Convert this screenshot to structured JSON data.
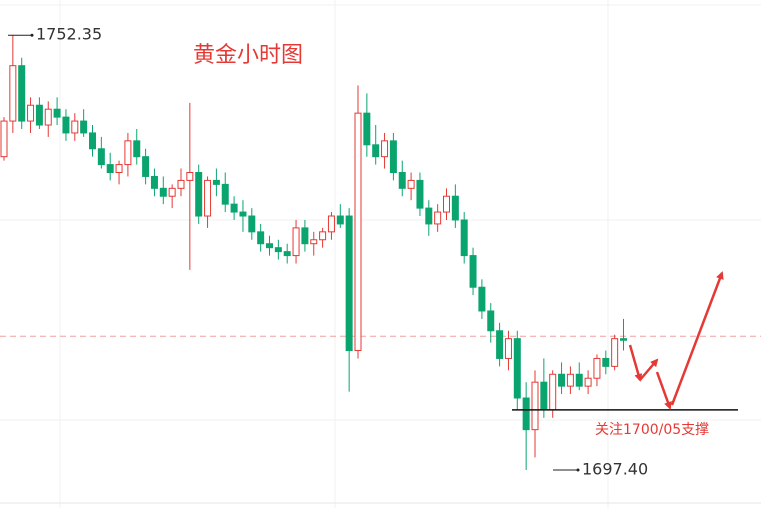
{
  "chart_data": {
    "type": "candlestick",
    "title": "黄金小时图",
    "ylim": [
      1692.6,
      1756.8
    ],
    "up_color": "#e53935",
    "down_color": "#0aa56f",
    "open": [
      1737.0,
      1741.5,
      1748.5,
      1741.5,
      1743.5,
      1741.0,
      1743.0,
      1742.0,
      1740.0,
      1741.5,
      1740.0,
      1738.0,
      1736.0,
      1735.0,
      1736.0,
      1739.0,
      1737.0,
      1734.5,
      1733.0,
      1732.0,
      1733.0,
      1734.0,
      1735.0,
      1729.5,
      1734.0,
      1733.5,
      1731.0,
      1730.0,
      1729.5,
      1727.5,
      1726.0,
      1725.5,
      1725.0,
      1724.5,
      1728.0,
      1726.0,
      1726.5,
      1727.5,
      1729.5,
      1729.5,
      1712.5,
      1742.5,
      1738.5,
      1737.0,
      1739.0,
      1735.0,
      1733.0,
      1734.0,
      1730.5,
      1728.5,
      1730.0,
      1732.0,
      1729.0,
      1724.5,
      1720.5,
      1717.5,
      1715.0,
      1711.5,
      1714.0,
      1706.5,
      1702.5,
      1708.5,
      1705.0,
      1709.5,
      1708.0,
      1709.5,
      1708.0,
      1709.0,
      1711.5,
      1710.5,
      1714.0
    ],
    "high": [
      1742.0,
      1752.35,
      1749.5,
      1744.5,
      1744.5,
      1744.0,
      1744.5,
      1743.0,
      1742.5,
      1743.0,
      1741.0,
      1739.5,
      1737.5,
      1736.5,
      1740.0,
      1740.5,
      1738.0,
      1735.5,
      1734.5,
      1733.5,
      1735.5,
      1743.8,
      1736.0,
      1734.5,
      1735.5,
      1735.0,
      1732.0,
      1731.5,
      1730.5,
      1728.5,
      1727.0,
      1726.5,
      1726.0,
      1729.0,
      1729.0,
      1727.5,
      1728.0,
      1730.0,
      1731.0,
      1730.5,
      1746.0,
      1745.0,
      1741.0,
      1740.0,
      1740.0,
      1736.5,
      1735.0,
      1735.0,
      1731.5,
      1731.0,
      1733.0,
      1733.5,
      1730.0,
      1725.5,
      1721.5,
      1718.5,
      1716.0,
      1715.0,
      1715.0,
      1708.5,
      1710.0,
      1711.5,
      1710.0,
      1711.0,
      1710.5,
      1711.0,
      1710.0,
      1712.0,
      1712.5,
      1714.5,
      1716.5
    ],
    "low": [
      1736.5,
      1740.0,
      1740.5,
      1740.0,
      1740.5,
      1739.5,
      1741.0,
      1739.0,
      1739.0,
      1739.5,
      1737.0,
      1735.5,
      1734.0,
      1733.5,
      1734.5,
      1736.0,
      1733.5,
      1732.0,
      1731.0,
      1730.5,
      1732.0,
      1722.7,
      1728.5,
      1728.0,
      1732.0,
      1730.0,
      1729.0,
      1727.5,
      1726.5,
      1725.0,
      1724.5,
      1724.0,
      1723.5,
      1723.5,
      1725.0,
      1724.5,
      1725.5,
      1726.5,
      1728.0,
      1707.3,
      1711.5,
      1737.0,
      1736.0,
      1735.5,
      1734.0,
      1732.0,
      1731.5,
      1729.5,
      1727.0,
      1727.5,
      1729.0,
      1728.0,
      1723.5,
      1719.5,
      1716.5,
      1713.5,
      1710.5,
      1710.0,
      1705.0,
      1697.4,
      1699.0,
      1704.0,
      1704.0,
      1707.0,
      1707.0,
      1707.5,
      1707.0,
      1708.0,
      1709.5,
      1710.0,
      1712.5
    ],
    "close": [
      1741.5,
      1748.5,
      1741.5,
      1743.5,
      1741.0,
      1743.0,
      1742.0,
      1740.0,
      1741.5,
      1740.0,
      1738.0,
      1736.0,
      1735.0,
      1736.0,
      1739.0,
      1737.0,
      1734.5,
      1733.0,
      1732.0,
      1733.0,
      1734.0,
      1735.0,
      1729.5,
      1734.0,
      1733.5,
      1731.0,
      1730.0,
      1729.5,
      1727.5,
      1726.0,
      1725.5,
      1725.0,
      1724.5,
      1728.0,
      1726.0,
      1726.5,
      1727.5,
      1729.5,
      1728.5,
      1712.5,
      1742.5,
      1738.5,
      1737.0,
      1739.0,
      1735.0,
      1733.0,
      1734.0,
      1730.5,
      1728.5,
      1730.0,
      1732.0,
      1729.0,
      1724.5,
      1720.5,
      1717.5,
      1715.0,
      1711.5,
      1714.0,
      1706.5,
      1702.5,
      1708.5,
      1705.0,
      1709.5,
      1708.0,
      1709.5,
      1708.0,
      1709.0,
      1711.5,
      1710.5,
      1714.0,
      1713.8
    ],
    "high_label": 1752.35,
    "low_label": {
      "value": 1697.4,
      "label": "1697.40"
    },
    "current_price": 1714.3,
    "support": 1705,
    "annotation": "关注1700/05支撑"
  }
}
